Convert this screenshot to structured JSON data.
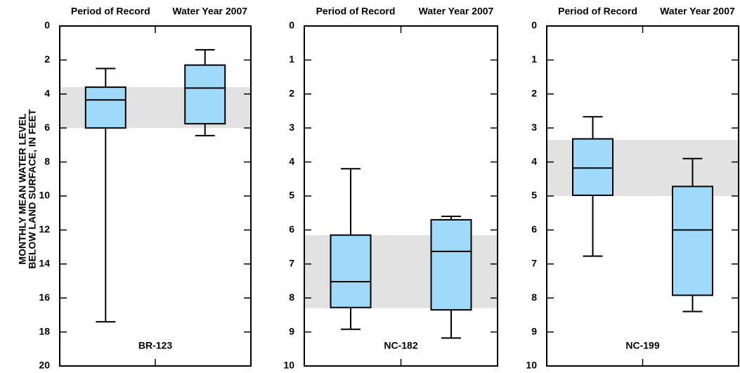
{
  "chart_data": [
    {
      "type": "box",
      "categories": [
        "Period of Record",
        "Water Year 2007"
      ],
      "annotation": "BR-123",
      "y_label": [
        "MONTHLY MEAN WATER LEVEL",
        "BELOW LAND SURFACE, IN FEET"
      ],
      "ylim": [
        0,
        20
      ],
      "yticks": [
        0,
        2,
        4,
        6,
        8,
        10,
        12,
        14,
        16,
        18,
        20
      ],
      "y_inverted": true,
      "band": [
        3.6,
        6.0
      ],
      "band_color": "#e2e2e2",
      "color": "#9fd9fb",
      "boxes": [
        {
          "min": 2.5,
          "q1": 3.6,
          "median": 4.35,
          "q3": 6.0,
          "max": 17.4
        },
        {
          "min": 1.4,
          "q1": 2.3,
          "median": 3.65,
          "q3": 5.75,
          "max": 6.45
        }
      ]
    },
    {
      "type": "box",
      "categories": [
        "Period of Record",
        "Water Year 2007"
      ],
      "annotation": "NC-182",
      "ylim": [
        0,
        10
      ],
      "yticks": [
        0,
        1,
        2,
        3,
        4,
        5,
        6,
        7,
        8,
        9,
        10
      ],
      "y_inverted": true,
      "band": [
        6.15,
        8.3
      ],
      "band_color": "#e2e2e2",
      "color": "#9fd9fb",
      "boxes": [
        {
          "min": 4.2,
          "q1": 6.15,
          "median": 7.52,
          "q3": 8.28,
          "max": 8.92
        },
        {
          "min": 5.6,
          "q1": 5.7,
          "median": 6.63,
          "q3": 8.35,
          "max": 9.18
        }
      ]
    },
    {
      "type": "box",
      "categories": [
        "Period of Record",
        "Water Year 2007"
      ],
      "annotation": "NC-199",
      "ylim": [
        0,
        10
      ],
      "yticks": [
        0,
        1,
        2,
        3,
        4,
        5,
        6,
        7,
        8,
        9,
        10
      ],
      "y_inverted": true,
      "band": [
        3.35,
        5.0
      ],
      "band_color": "#e2e2e2",
      "color": "#9fd9fb",
      "boxes": [
        {
          "min": 2.67,
          "q1": 3.32,
          "median": 4.18,
          "q3": 4.98,
          "max": 6.77
        },
        {
          "min": 3.9,
          "q1": 4.72,
          "median": 6.0,
          "q3": 7.92,
          "max": 8.4
        }
      ]
    }
  ]
}
